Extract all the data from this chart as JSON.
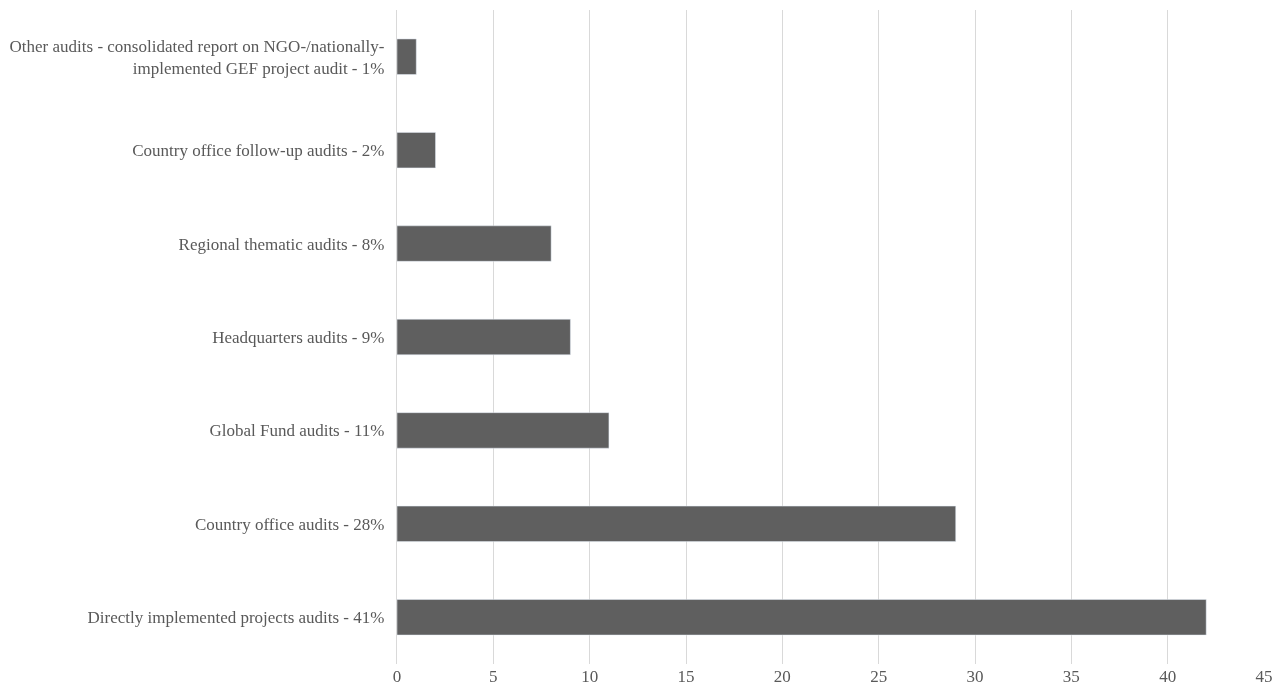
{
  "chart_data": {
    "type": "bar",
    "orientation": "horizontal",
    "categories": [
      "Other audits - consolidated report on NGO-/nationally-implemented GEF project audit - 1%",
      "Country office follow-up audits - 2%",
      "Regional thematic audits - 8%",
      "Headquarters audits - 9%",
      "Global Fund audits - 11%",
      "Country office audits - 28%",
      "Directly implemented projects audits - 41%"
    ],
    "values": [
      1,
      2,
      8,
      9,
      11,
      29,
      42
    ],
    "color": "#5f5f5f",
    "xlim": [
      0,
      45
    ],
    "xticks": [
      0,
      5,
      10,
      15,
      20,
      25,
      30,
      35,
      40,
      45
    ],
    "grid": "x",
    "legend": false
  }
}
